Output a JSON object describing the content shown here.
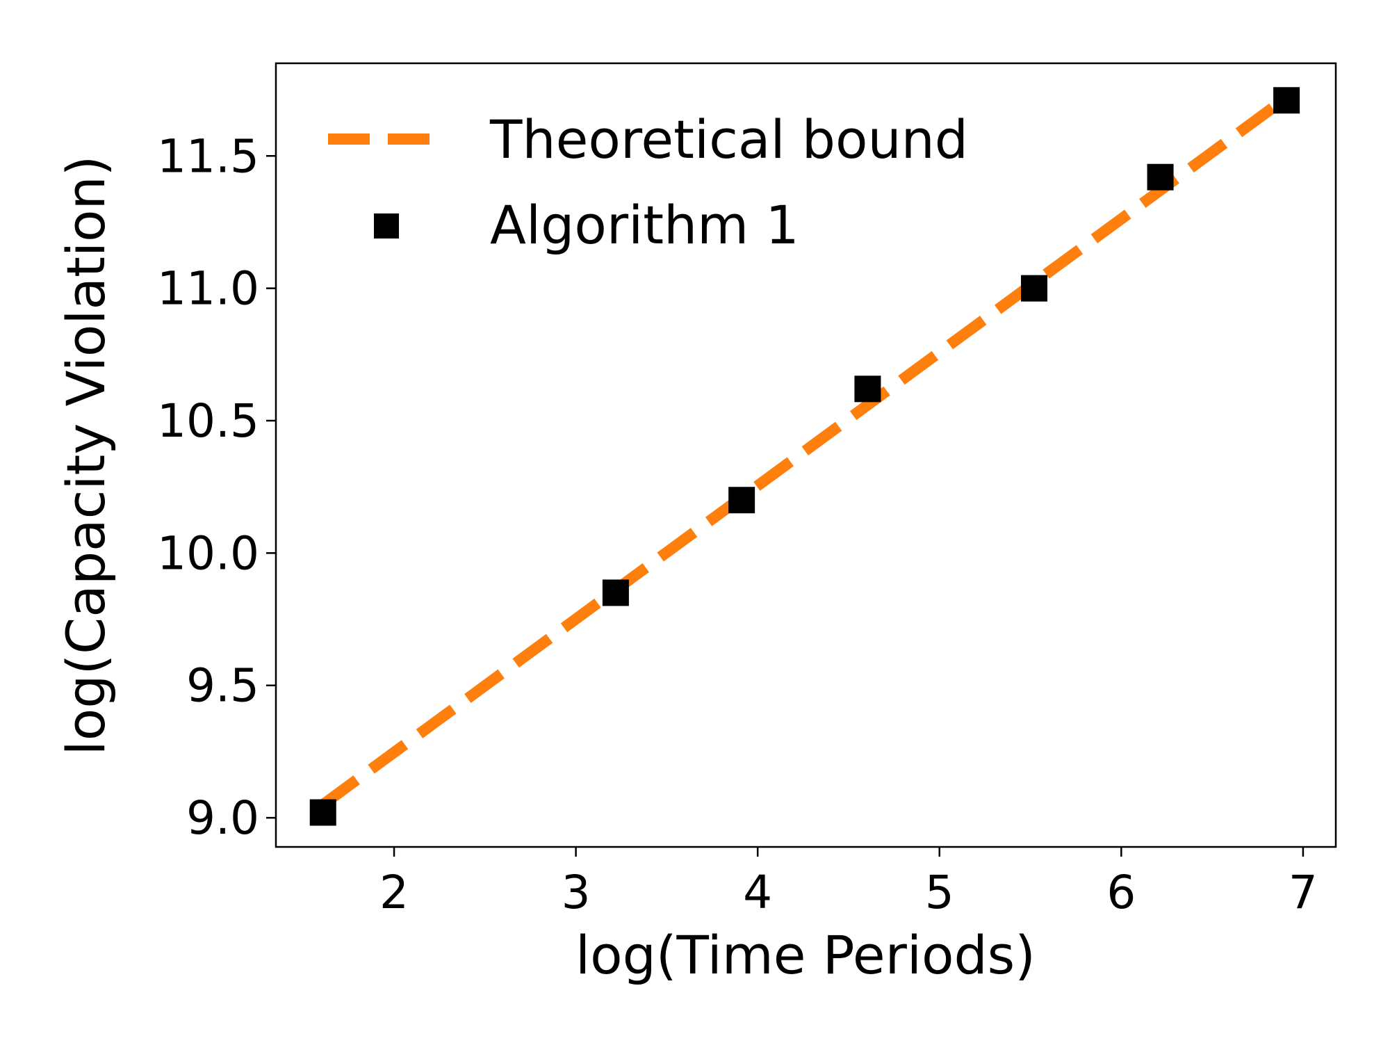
{
  "chart_data": {
    "type": "line",
    "title": "",
    "xlabel": "log(Time Periods)",
    "ylabel": "log(Capacity Violation)",
    "xlim": [
      1.35,
      7.18
    ],
    "ylim": [
      8.89,
      11.85
    ],
    "xticks": [
      {
        "value": 2,
        "label": "2"
      },
      {
        "value": 3,
        "label": "3"
      },
      {
        "value": 4,
        "label": "4"
      },
      {
        "value": 5,
        "label": "5"
      },
      {
        "value": 6,
        "label": "6"
      },
      {
        "value": 7,
        "label": "7"
      }
    ],
    "yticks": [
      {
        "value": 9.0,
        "label": "9.0"
      },
      {
        "value": 9.5,
        "label": "9.5"
      },
      {
        "value": 10.0,
        "label": "10.0"
      },
      {
        "value": 10.5,
        "label": "10.5"
      },
      {
        "value": 11.0,
        "label": "11.0"
      },
      {
        "value": 11.5,
        "label": "11.5"
      }
    ],
    "grid": false,
    "legend_position": "top-left",
    "series": [
      {
        "name": "Theoretical bound",
        "kind": "line",
        "style": "dashed",
        "color": "#ff7f0e",
        "x": [
          1.609,
          6.909
        ],
        "y": [
          9.05,
          11.72
        ]
      },
      {
        "name": "Algorithm 1",
        "kind": "scatter",
        "marker": "square",
        "color": "#000000",
        "x": [
          1.609,
          3.219,
          3.912,
          4.605,
          5.521,
          6.215,
          6.909
        ],
        "y": [
          9.02,
          9.85,
          10.2,
          10.62,
          11.0,
          11.42,
          11.71
        ]
      }
    ]
  }
}
